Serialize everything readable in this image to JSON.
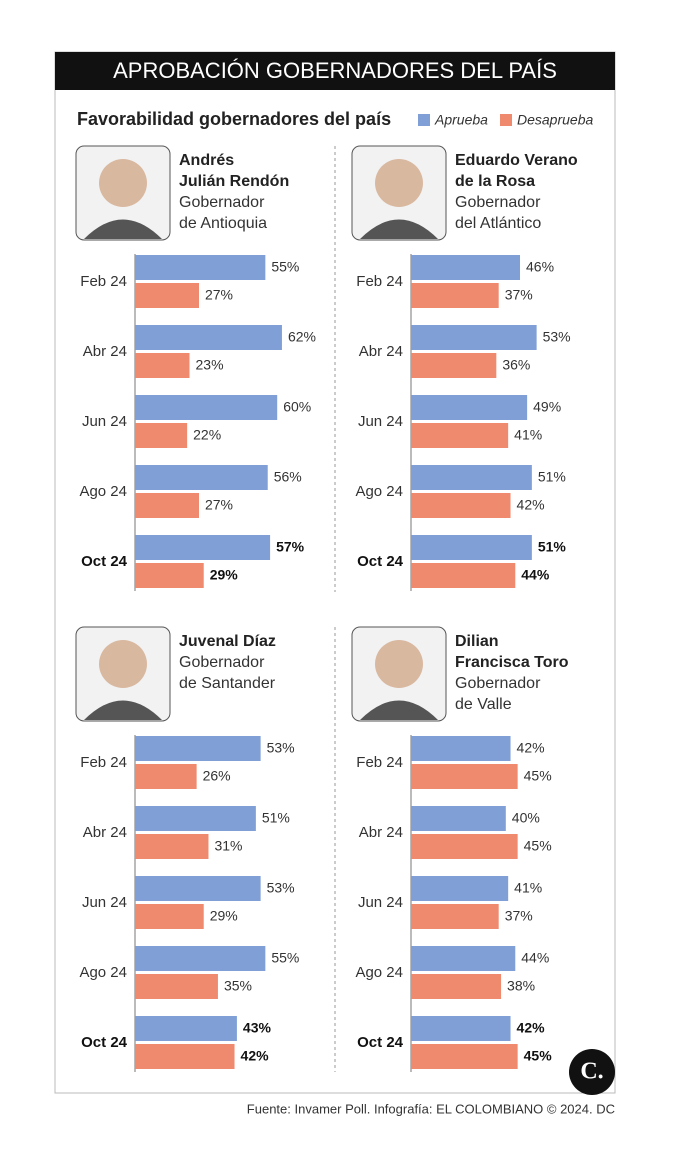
{
  "title": "APROBACIÓN GOBERNADORES DEL PAÍS",
  "subtitle": "Favorabilidad gobernadores del país",
  "legend": [
    {
      "name": "Aprueba",
      "color": "#7f9fd6"
    },
    {
      "name": "Desaprueba",
      "color": "#ef8a6f"
    }
  ],
  "source": "Fuente: Invamer Poll. Infografía: EL COLOMBIANO © 2024. DC",
  "logo": "C.",
  "chart_data": [
    {
      "type": "bar",
      "orientation": "horizontal",
      "name": [
        "Andrés",
        "Julián Rendón"
      ],
      "role": [
        "Gobernador",
        "de Antioquia"
      ],
      "categories": [
        "Feb 24",
        "Abr 24",
        "Jun 24",
        "Ago 24",
        "Oct 24"
      ],
      "series": [
        {
          "values": [
            55,
            62,
            60,
            56,
            57
          ],
          "value_labels": [
            "55%",
            "62%",
            "60%",
            "56%",
            "57%"
          ]
        },
        {
          "values": [
            27,
            23,
            22,
            27,
            29
          ],
          "value_labels": [
            "27%",
            "23%",
            "22%",
            "27%",
            "29%"
          ]
        }
      ]
    },
    {
      "type": "bar",
      "orientation": "horizontal",
      "name": [
        "Eduardo Verano",
        "de la Rosa"
      ],
      "role": [
        "Gobernador",
        "del Atlántico"
      ],
      "categories": [
        "Feb 24",
        "Abr 24",
        "Jun 24",
        "Ago 24",
        "Oct 24"
      ],
      "series": [
        {
          "values": [
            46,
            53,
            49,
            51,
            51
          ],
          "value_labels": [
            "46%",
            "53%",
            "49%",
            "51%",
            "51%"
          ]
        },
        {
          "values": [
            37,
            36,
            41,
            42,
            44
          ],
          "value_labels": [
            "37%",
            "36%",
            "41%",
            "42%",
            "44%"
          ]
        }
      ]
    },
    {
      "type": "bar",
      "orientation": "horizontal",
      "name": [
        "Juvenal Díaz"
      ],
      "role": [
        "Gobernador",
        "de Santander"
      ],
      "categories": [
        "Feb 24",
        "Abr 24",
        "Jun 24",
        "Ago 24",
        "Oct 24"
      ],
      "series": [
        {
          "values": [
            53,
            51,
            53,
            55,
            43
          ],
          "value_labels": [
            "53%",
            "51%",
            "53%",
            "55%",
            "43%"
          ]
        },
        {
          "values": [
            26,
            31,
            29,
            35,
            42
          ],
          "value_labels": [
            "26%",
            "31%",
            "29%",
            "35%",
            "42%"
          ]
        }
      ]
    },
    {
      "type": "bar",
      "orientation": "horizontal",
      "name": [
        "Dilian",
        "Francisca Toro"
      ],
      "role": [
        "Gobernador",
        "de Valle"
      ],
      "categories": [
        "Feb 24",
        "Abr 24",
        "Jun 24",
        "Ago 24",
        "Oct 24"
      ],
      "series": [
        {
          "values": [
            42,
            40,
            41,
            44,
            42
          ],
          "value_labels": [
            "42%",
            "40%",
            "41%",
            "44%",
            "42%"
          ]
        },
        {
          "values": [
            45,
            45,
            37,
            38,
            45
          ],
          "value_labels": [
            "45%",
            "45%",
            "37%",
            "38%",
            "45%"
          ]
        }
      ]
    }
  ]
}
